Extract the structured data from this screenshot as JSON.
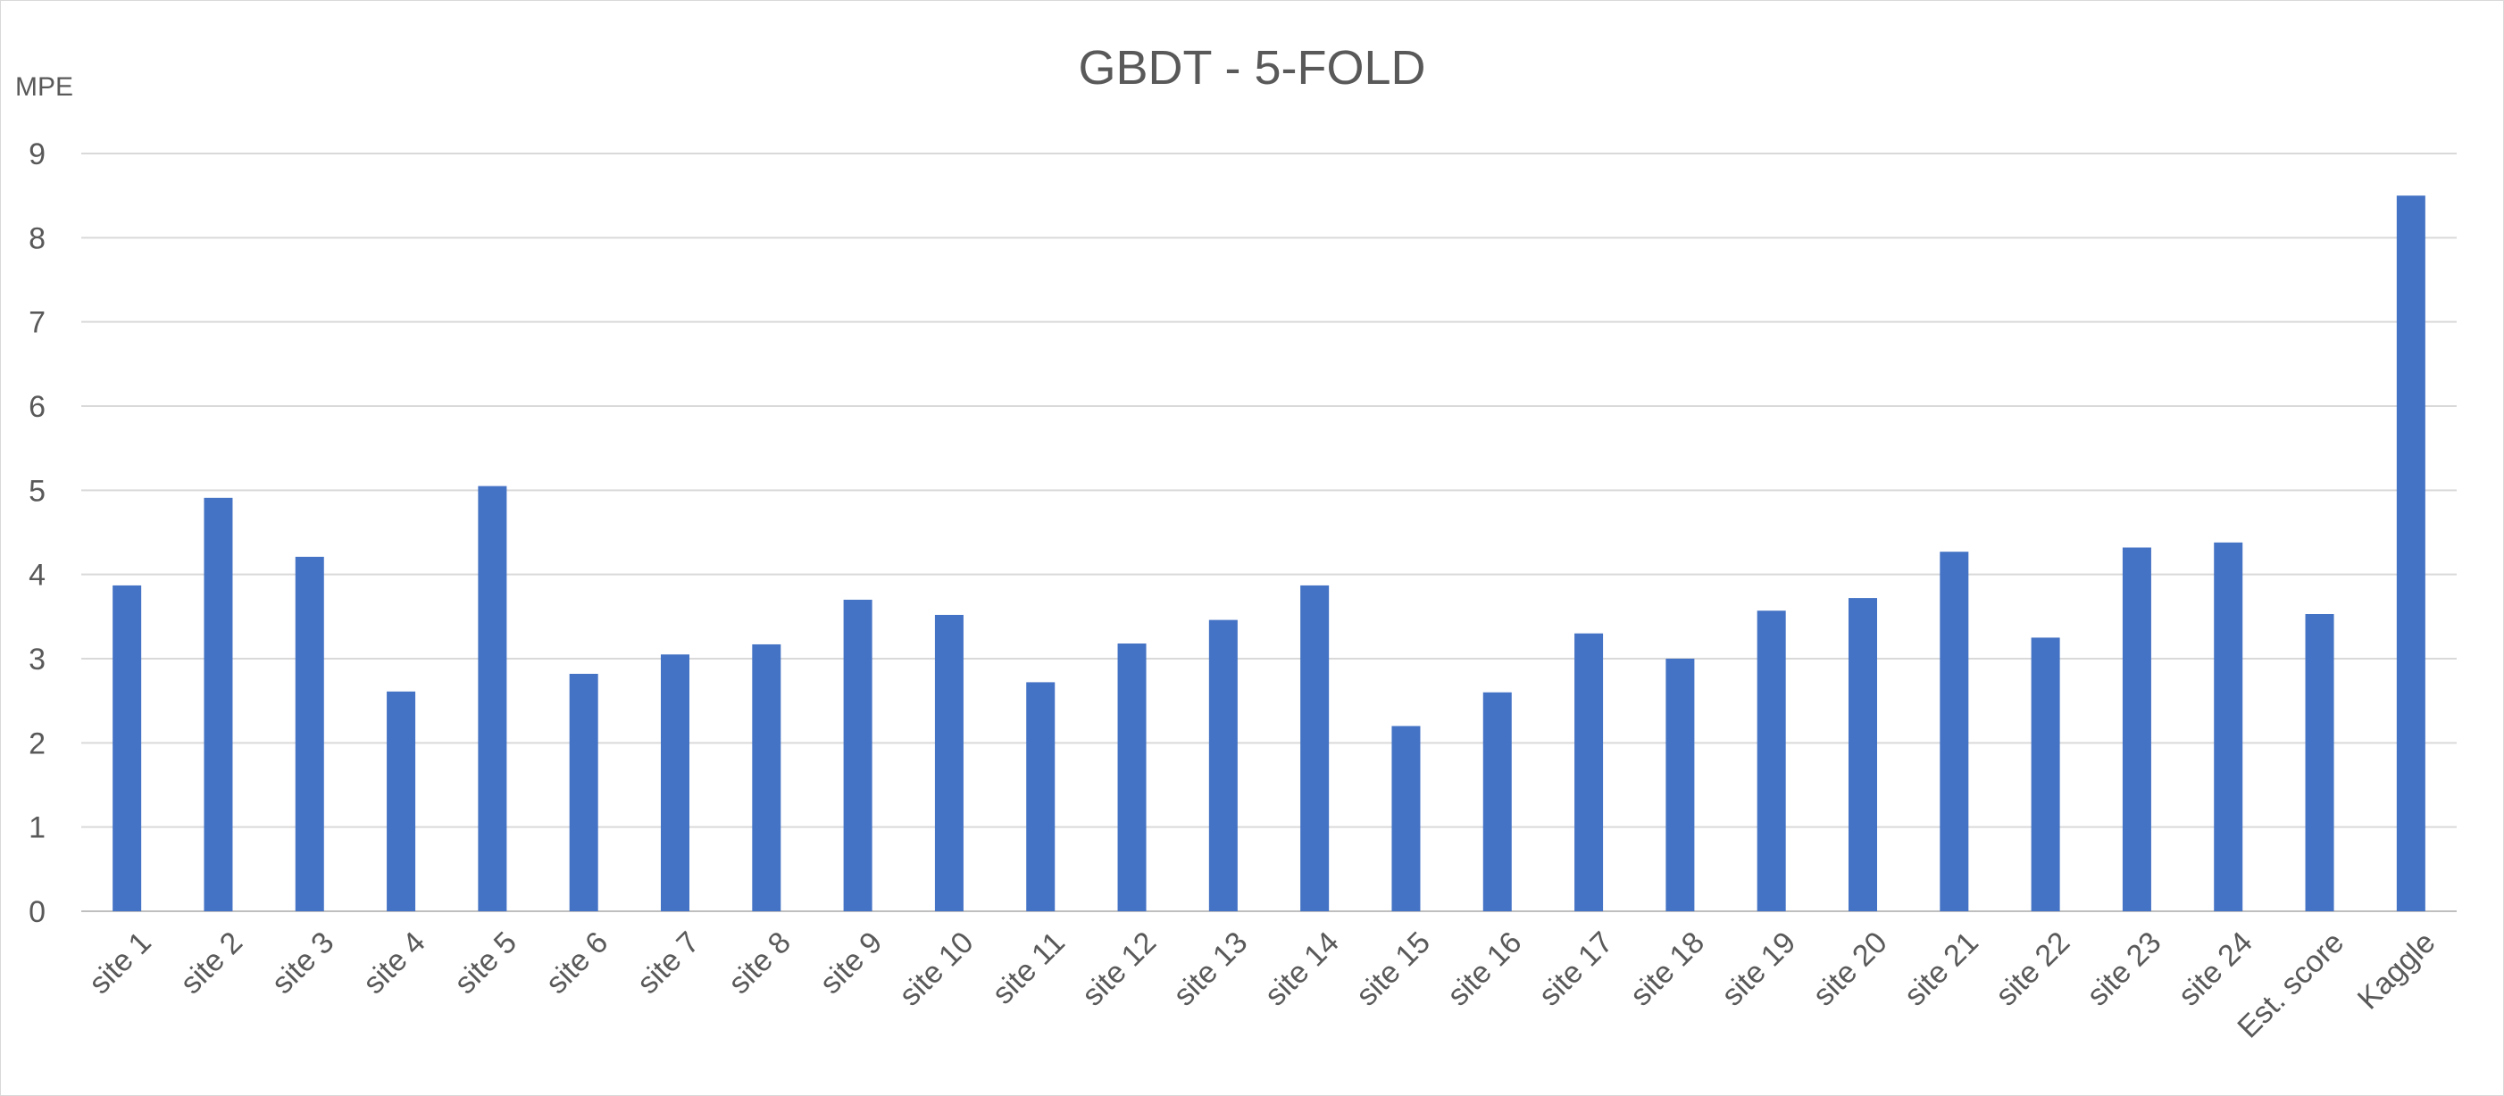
{
  "chart_data": {
    "type": "bar",
    "title": "GBDT - 5-FOLD",
    "ylabel": "MPE",
    "xlabel": "",
    "ylim": [
      0,
      9
    ],
    "yticks": [
      0,
      1,
      2,
      3,
      4,
      5,
      6,
      7,
      8,
      9
    ],
    "grid": true,
    "legend": "none",
    "bar_color": "#4472C4",
    "categories": [
      "site 1",
      "site 2",
      "site 3",
      "site 4",
      "site 5",
      "site 6",
      "site 7",
      "site 8",
      "site 9",
      "site 10",
      "site 11",
      "site 12",
      "site 13",
      "site 14",
      "site 15",
      "site 16",
      "site 17",
      "site 18",
      "site 19",
      "site 20",
      "site 21",
      "site 22",
      "site 23",
      "site 24",
      "Est. score",
      "Kaggle"
    ],
    "values": [
      3.87,
      4.91,
      4.21,
      2.61,
      5.05,
      2.82,
      3.05,
      3.17,
      3.7,
      3.52,
      2.72,
      3.18,
      3.46,
      3.87,
      2.2,
      2.6,
      3.3,
      3.0,
      3.57,
      3.72,
      4.27,
      3.25,
      4.32,
      4.38,
      3.53,
      8.5
    ]
  }
}
